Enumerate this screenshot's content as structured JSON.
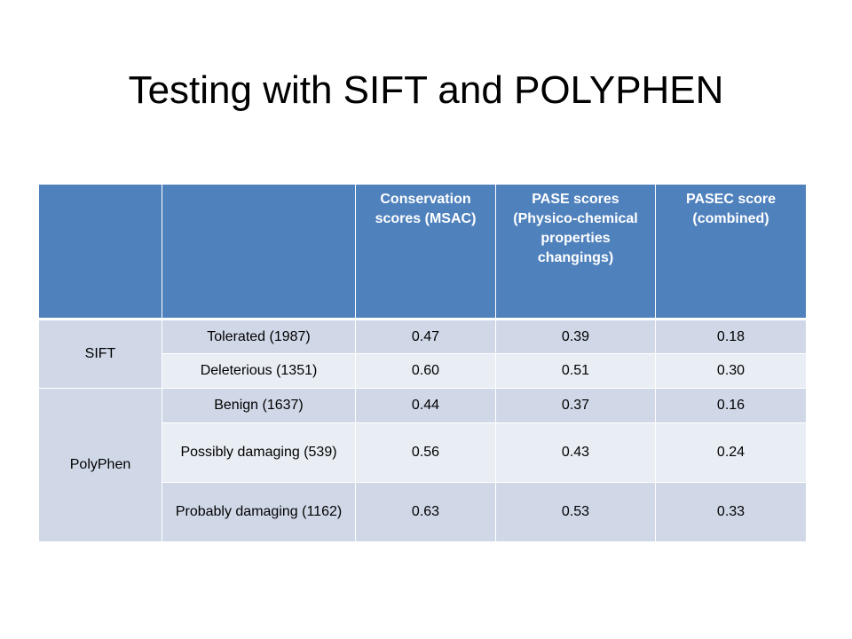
{
  "slide": {
    "title": "Testing with SIFT and POLYPHEN"
  },
  "table": {
    "headers": [
      "",
      "",
      "Conservation scores (MSAC)",
      "PASE scores (Physico-chemical properties changings)",
      "PASEC score (combined)"
    ],
    "groups": [
      {
        "name": "SIFT",
        "rows": [
          {
            "label": "Tolerated (1987)",
            "msac": "0.47",
            "pase": "0.39",
            "pasec": "0.18"
          },
          {
            "label": "Deleterious (1351)",
            "msac": "0.60",
            "pase": "0.51",
            "pasec": "0.30"
          }
        ]
      },
      {
        "name": "PolyPhen",
        "rows": [
          {
            "label": "Benign (1637)",
            "msac": "0.44",
            "pase": "0.37",
            "pasec": "0.16"
          },
          {
            "label": "Possibly damaging (539)",
            "msac": "0.56",
            "pase": "0.43",
            "pasec": "0.24"
          },
          {
            "label": "Probably damaging (1162)",
            "msac": "0.63",
            "pase": "0.53",
            "pasec": "0.33"
          }
        ]
      }
    ]
  },
  "colors": {
    "header_bg": "#4f81bd",
    "row_dark": "#d0d8e8",
    "row_light": "#e9edf4"
  }
}
